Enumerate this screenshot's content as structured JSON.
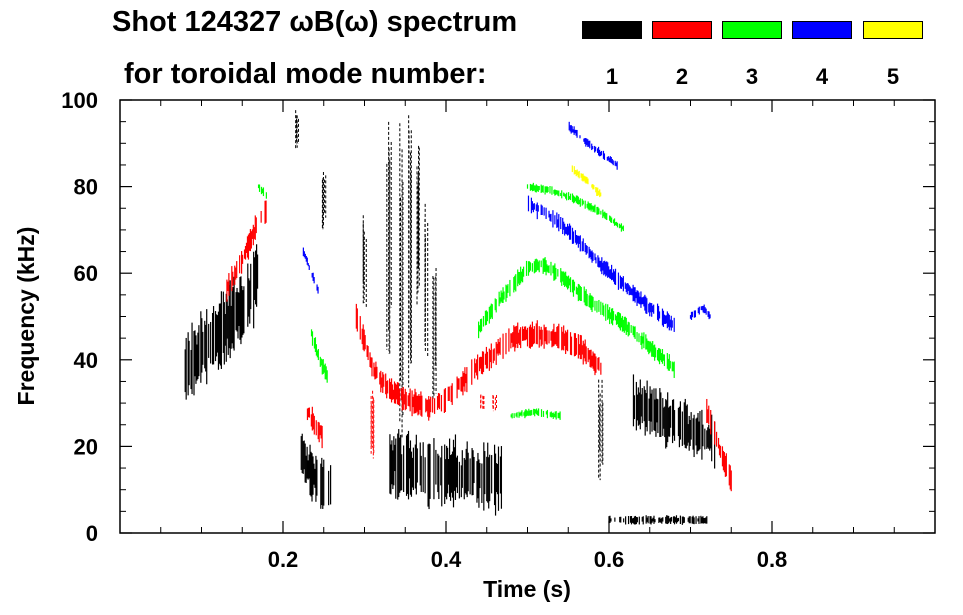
{
  "chart_data": {
    "type": "spectrogram",
    "title_line1": "Shot 124327 ωB(ω) spectrum",
    "title_line2": "for toroidal mode number:",
    "xlabel": "Time (s)",
    "ylabel": "Frequency (kHz)",
    "xlim": [
      0.0,
      1.0
    ],
    "ylim": [
      0,
      100
    ],
    "xticks": [
      0.2,
      0.4,
      0.6,
      0.8
    ],
    "xtick_labels": [
      "0.2",
      "0.4",
      "0.6",
      "0.8"
    ],
    "yticks": [
      0,
      20,
      40,
      60,
      80,
      100
    ],
    "ytick_labels": [
      "0",
      "20",
      "40",
      "60",
      "80",
      "100"
    ],
    "legend": [
      {
        "mode": "1",
        "color": "#000000"
      },
      {
        "mode": "2",
        "color": "#ff0000"
      },
      {
        "mode": "3",
        "color": "#00ff00"
      },
      {
        "mode": "4",
        "color": "#0000ff"
      },
      {
        "mode": "5",
        "color": "#ffff00"
      }
    ],
    "series": [
      {
        "name": "n=1",
        "color": "#000000",
        "tracks": [
          {
            "t": [
              0.08,
              0.1,
              0.12,
              0.14,
              0.16,
              0.17
            ],
            "f": [
              37,
              42,
              46,
              50,
              55,
              60
            ],
            "spread": 9
          },
          {
            "t": [
              0.22,
              0.23,
              0.24,
              0.25,
              0.26
            ],
            "f": [
              20,
              15,
              12,
              11,
              10
            ],
            "spread": 6
          },
          {
            "t": [
              0.33,
              0.36,
              0.4,
              0.44,
              0.47
            ],
            "f": [
              16,
              15,
              14,
              13,
              12
            ],
            "spread": 8
          },
          {
            "t": [
              0.63,
              0.66,
              0.7,
              0.73
            ],
            "f": [
              30,
              27,
              24,
              21
            ],
            "spread": 6
          },
          {
            "t": [
              0.6,
              0.64,
              0.68,
              0.72
            ],
            "f": [
              3,
              3,
              3,
              3
            ],
            "spread": 1
          }
        ],
        "bursts": [
          {
            "t": 0.217,
            "f0": 88,
            "f1": 98
          },
          {
            "t": 0.25,
            "f0": 70,
            "f1": 86
          },
          {
            "t": 0.3,
            "f0": 52,
            "f1": 74
          },
          {
            "t": 0.33,
            "f0": 40,
            "f1": 95
          },
          {
            "t": 0.345,
            "f0": 20,
            "f1": 100
          },
          {
            "t": 0.355,
            "f0": 30,
            "f1": 99
          },
          {
            "t": 0.365,
            "f0": 50,
            "f1": 90
          },
          {
            "t": 0.375,
            "f0": 40,
            "f1": 78
          },
          {
            "t": 0.385,
            "f0": 30,
            "f1": 62
          },
          {
            "t": 0.59,
            "f0": 12,
            "f1": 36
          }
        ]
      },
      {
        "name": "n=2",
        "color": "#ff0000",
        "tracks": [
          {
            "t": [
              0.13,
              0.15,
              0.17,
              0.18
            ],
            "f": [
              56,
              63,
              72,
              75
            ],
            "spread": 3
          },
          {
            "t": [
              0.23,
              0.25
            ],
            "f": [
              28,
              22
            ],
            "spread": 3
          },
          {
            "t": [
              0.29,
              0.31,
              0.33,
              0.36,
              0.38,
              0.4,
              0.42,
              0.45,
              0.48,
              0.51,
              0.54,
              0.57,
              0.59
            ],
            "f": [
              50,
              38,
              33,
              30,
              29,
              31,
              35,
              40,
              45,
              46,
              45,
              42,
              38
            ],
            "spread": 3
          },
          {
            "t": [
              0.72,
              0.735,
              0.75
            ],
            "f": [
              28,
              20,
              12
            ],
            "spread": 3
          }
        ],
        "bursts": [
          {
            "t": 0.31,
            "f0": 15,
            "f1": 35
          },
          {
            "t": 0.445,
            "f0": 28,
            "f1": 32
          },
          {
            "t": 0.46,
            "f0": 28,
            "f1": 32
          }
        ]
      },
      {
        "name": "n=3",
        "color": "#00ff00",
        "tracks": [
          {
            "t": [
              0.235,
              0.245,
              0.255
            ],
            "f": [
              46,
              40,
              36
            ],
            "spread": 2
          },
          {
            "t": [
              0.17,
              0.18
            ],
            "f": [
              80,
              78
            ],
            "spread": 1
          },
          {
            "t": [
              0.44,
              0.47,
              0.5,
              0.52,
              0.55,
              0.58,
              0.62,
              0.65,
              0.68
            ],
            "f": [
              47,
              55,
              61,
              62,
              58,
              53,
              48,
              43,
              38
            ],
            "spread": 2
          },
          {
            "t": [
              0.5,
              0.53,
              0.56,
              0.59,
              0.62
            ],
            "f": [
              80,
              79,
              77,
              74,
              70
            ],
            "spread": 1
          },
          {
            "t": [
              0.48,
              0.51,
              0.54
            ],
            "f": [
              27,
              28,
              27
            ],
            "spread": 1
          }
        ],
        "bursts": []
      },
      {
        "name": "n=4",
        "color": "#0000ff",
        "tracks": [
          {
            "t": [
              0.225,
              0.235,
              0.245
            ],
            "f": [
              65,
              60,
              55
            ],
            "spread": 1
          },
          {
            "t": [
              0.5,
              0.53,
              0.56,
              0.59,
              0.62,
              0.65,
              0.68
            ],
            "f": [
              76,
              73,
              68,
              62,
              57,
              52,
              48
            ],
            "spread": 2
          },
          {
            "t": [
              0.55,
              0.58,
              0.61
            ],
            "f": [
              94,
              89,
              85
            ],
            "spread": 1
          },
          {
            "t": [
              0.7,
              0.715,
              0.725
            ],
            "f": [
              50,
              52,
              50
            ],
            "spread": 1
          }
        ],
        "bursts": []
      },
      {
        "name": "n=5",
        "color": "#ffff00",
        "tracks": [
          {
            "t": [
              0.555,
              0.575,
              0.59
            ],
            "f": [
              84,
              81,
              78
            ],
            "spread": 1
          }
        ],
        "bursts": []
      }
    ]
  }
}
